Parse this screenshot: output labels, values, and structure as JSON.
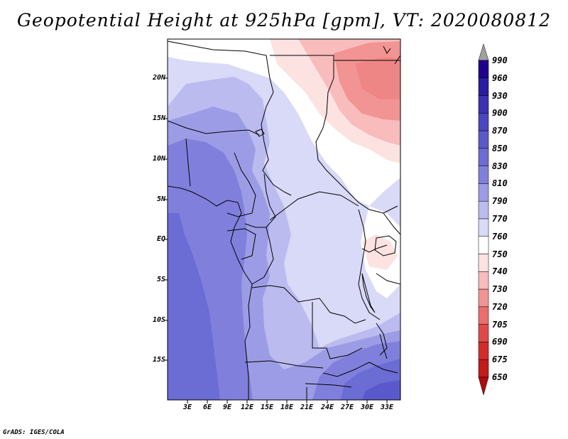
{
  "title": "Geopotential Height at 925hPa [gpm], VT: 2020080812",
  "credit": "GrADS: IGES/COLA",
  "map": {
    "y_axis_labels": [
      "20N",
      "15N",
      "10N",
      "5N",
      "EQ",
      "5S",
      "10S",
      "15S"
    ],
    "x_axis_labels": [
      "3E",
      "6E",
      "9E",
      "12E",
      "15E",
      "18E",
      "21E",
      "24E",
      "27E",
      "30E",
      "33E"
    ]
  },
  "colorbar": {
    "labels": [
      "990",
      "960",
      "930",
      "900",
      "870",
      "850",
      "830",
      "810",
      "790",
      "770",
      "760",
      "750",
      "740",
      "730",
      "720",
      "705",
      "690",
      "675",
      "650"
    ],
    "colors": [
      "#1f008f",
      "#2b1aa3",
      "#3a31b5",
      "#4a45c2",
      "#5a59cb",
      "#6b6cd4",
      "#8080dc",
      "#9c9ce6",
      "#bbbbf0",
      "#d9d9f8",
      "#ffffff",
      "#fde2e2",
      "#f8bcbc",
      "#f29494",
      "#ec6d6d",
      "#e34848",
      "#d52b2b",
      "#c41a1a",
      "#ad0c0c"
    ]
  },
  "chart_data": {
    "type": "heatmap",
    "title": "Geopotential Height at 925hPa [gpm], VT: 2020080812",
    "variable": "Geopotential Height",
    "level": "925hPa",
    "units": "gpm",
    "valid_time": "2020080812",
    "x_range": [
      0,
      35
    ],
    "y_range": [
      -20,
      25
    ],
    "xticks": [
      "3E",
      "6E",
      "9E",
      "12E",
      "15E",
      "18E",
      "21E",
      "24E",
      "27E",
      "30E",
      "33E"
    ],
    "yticks": [
      "20N",
      "15N",
      "10N",
      "5N",
      "EQ",
      "5S",
      "10S",
      "15S"
    ],
    "levels": [
      650,
      675,
      690,
      705,
      720,
      730,
      740,
      750,
      760,
      770,
      790,
      810,
      830,
      850,
      870,
      900,
      930,
      960,
      990
    ]
  }
}
